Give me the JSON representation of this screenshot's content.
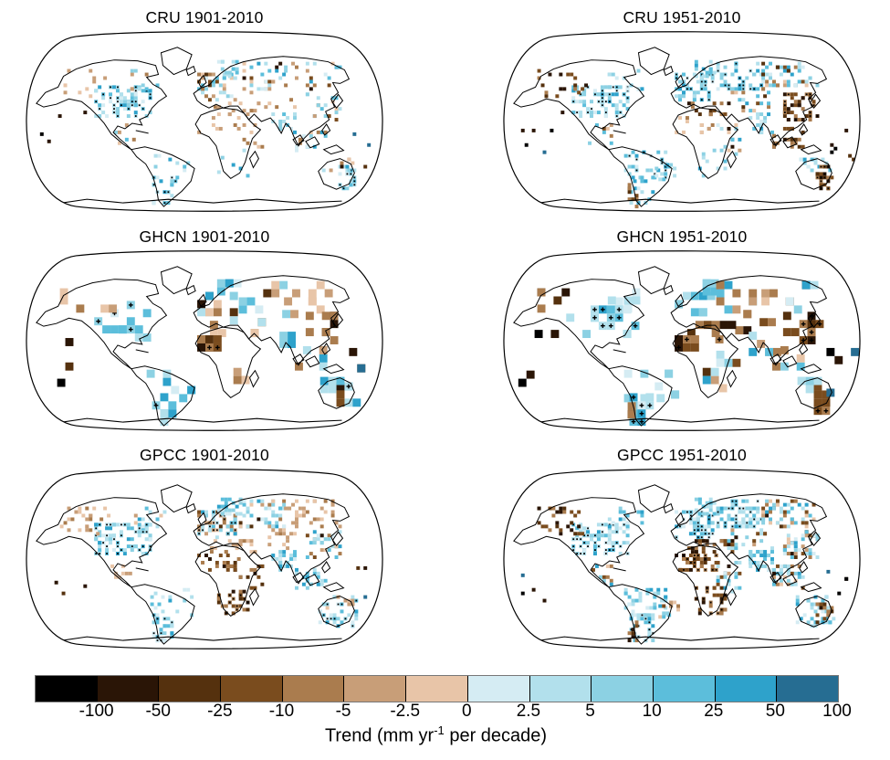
{
  "figure": {
    "kind": "precipitation-trend-map-grid",
    "rows": 3,
    "cols": 2
  },
  "panels": [
    {
      "title": "CRU 1901-2010",
      "cell": 4,
      "seed": 11,
      "regions": [
        [
          78,
          62,
          64,
          36,
          80,
          "b",
          1
        ],
        [
          40,
          44,
          56,
          30,
          12,
          "t",
          0
        ],
        [
          118,
          44,
          40,
          24,
          10,
          "m",
          0
        ],
        [
          192,
          48,
          44,
          30,
          45,
          "m",
          0
        ],
        [
          214,
          34,
          26,
          20,
          14,
          "b",
          0
        ],
        [
          238,
          36,
          50,
          32,
          28,
          "m",
          0
        ],
        [
          288,
          36,
          62,
          32,
          22,
          "m",
          0
        ],
        [
          250,
          68,
          50,
          22,
          10,
          "t",
          0
        ],
        [
          312,
          70,
          38,
          32,
          18,
          "m",
          0
        ],
        [
          274,
          92,
          28,
          24,
          16,
          "b",
          0
        ],
        [
          300,
          108,
          36,
          26,
          14,
          "m",
          0
        ],
        [
          206,
          80,
          52,
          16,
          12,
          "t",
          0
        ],
        [
          192,
          96,
          48,
          20,
          8,
          "t",
          0
        ],
        [
          238,
          104,
          26,
          34,
          8,
          "t",
          0
        ],
        [
          214,
          132,
          36,
          32,
          6,
          "b",
          0
        ],
        [
          136,
          134,
          50,
          32,
          10,
          "b",
          0
        ],
        [
          142,
          162,
          26,
          32,
          22,
          "b",
          1
        ],
        [
          348,
          150,
          18,
          26,
          22,
          "b",
          1
        ],
        [
          330,
          142,
          34,
          14,
          8,
          "m",
          0
        ],
        [
          10,
          90,
          60,
          60,
          4,
          "d",
          0
        ],
        [
          360,
          110,
          30,
          50,
          4,
          "d",
          0
        ],
        [
          96,
          104,
          28,
          26,
          6,
          "m",
          0
        ]
      ]
    },
    {
      "title": "CRU 1951-2010",
      "cell": 4,
      "seed": 22,
      "regions": [
        [
          78,
          62,
          64,
          36,
          80,
          "b",
          1
        ],
        [
          40,
          44,
          56,
          30,
          18,
          "br",
          0
        ],
        [
          118,
          44,
          40,
          24,
          12,
          "b",
          0
        ],
        [
          192,
          48,
          44,
          30,
          50,
          "b",
          1
        ],
        [
          214,
          34,
          26,
          20,
          16,
          "b",
          0
        ],
        [
          238,
          36,
          50,
          32,
          45,
          "b",
          1
        ],
        [
          288,
          36,
          62,
          32,
          55,
          "m",
          0
        ],
        [
          250,
          68,
          50,
          22,
          18,
          "m",
          0
        ],
        [
          312,
          70,
          38,
          32,
          40,
          "br",
          1
        ],
        [
          274,
          92,
          28,
          24,
          18,
          "b",
          0
        ],
        [
          300,
          108,
          36,
          26,
          22,
          "br",
          0
        ],
        [
          206,
          80,
          52,
          16,
          16,
          "br",
          0
        ],
        [
          192,
          96,
          48,
          20,
          12,
          "t",
          0
        ],
        [
          238,
          104,
          26,
          34,
          14,
          "m",
          0
        ],
        [
          214,
          132,
          36,
          32,
          10,
          "b",
          0
        ],
        [
          136,
          134,
          50,
          32,
          35,
          "b",
          1
        ],
        [
          170,
          148,
          26,
          20,
          10,
          "b",
          0
        ],
        [
          142,
          162,
          26,
          32,
          16,
          "b",
          0
        ],
        [
          140,
          170,
          12,
          26,
          10,
          "br",
          0
        ],
        [
          330,
          142,
          34,
          14,
          16,
          "b",
          0
        ],
        [
          348,
          150,
          18,
          26,
          20,
          "br",
          1
        ],
        [
          10,
          90,
          60,
          60,
          6,
          "d",
          0
        ],
        [
          360,
          110,
          30,
          50,
          6,
          "d",
          0
        ],
        [
          96,
          104,
          28,
          26,
          8,
          "m",
          0
        ]
      ]
    },
    {
      "title": "GHCN 1901-2010",
      "cell": 9,
      "seed": 33,
      "regions": [
        [
          78,
          58,
          66,
          40,
          16,
          "b",
          1
        ],
        [
          40,
          44,
          56,
          26,
          5,
          "t",
          0
        ],
        [
          192,
          48,
          44,
          30,
          12,
          "m",
          0
        ],
        [
          214,
          34,
          26,
          20,
          5,
          "b",
          0
        ],
        [
          238,
          36,
          50,
          32,
          8,
          "m",
          0
        ],
        [
          288,
          36,
          62,
          32,
          8,
          "t",
          0
        ],
        [
          250,
          68,
          50,
          22,
          5,
          "m",
          0
        ],
        [
          312,
          70,
          38,
          32,
          10,
          "br",
          0
        ],
        [
          274,
          92,
          28,
          24,
          5,
          "b",
          0
        ],
        [
          300,
          108,
          36,
          26,
          5,
          "m",
          0
        ],
        [
          206,
          80,
          52,
          16,
          6,
          "t",
          0
        ],
        [
          192,
          96,
          48,
          20,
          8,
          "br",
          1
        ],
        [
          214,
          132,
          36,
          32,
          4,
          "t",
          0
        ],
        [
          136,
          134,
          50,
          32,
          7,
          "b",
          0
        ],
        [
          142,
          160,
          26,
          34,
          9,
          "b",
          1
        ],
        [
          346,
          148,
          20,
          28,
          8,
          "m",
          1
        ],
        [
          328,
          142,
          30,
          14,
          5,
          "b",
          0
        ],
        [
          10,
          90,
          60,
          60,
          3,
          "d",
          0
        ],
        [
          360,
          110,
          30,
          50,
          3,
          "d",
          0
        ]
      ]
    },
    {
      "title": "GHCN 1951-2010",
      "cell": 9,
      "seed": 44,
      "regions": [
        [
          72,
          54,
          74,
          42,
          18,
          "b",
          1
        ],
        [
          40,
          44,
          40,
          26,
          5,
          "br",
          0
        ],
        [
          118,
          44,
          40,
          22,
          6,
          "b",
          0
        ],
        [
          192,
          48,
          44,
          30,
          10,
          "b",
          0
        ],
        [
          214,
          34,
          26,
          20,
          6,
          "b",
          0
        ],
        [
          238,
          36,
          50,
          32,
          12,
          "m",
          0
        ],
        [
          288,
          36,
          62,
          32,
          10,
          "m",
          0
        ],
        [
          250,
          68,
          50,
          22,
          6,
          "br",
          0
        ],
        [
          312,
          70,
          38,
          32,
          12,
          "br",
          1
        ],
        [
          274,
          92,
          28,
          24,
          7,
          "m",
          0
        ],
        [
          300,
          108,
          36,
          26,
          6,
          "m",
          0
        ],
        [
          206,
          80,
          52,
          16,
          7,
          "br",
          0
        ],
        [
          192,
          96,
          48,
          20,
          10,
          "br",
          1
        ],
        [
          238,
          104,
          26,
          34,
          4,
          "m",
          0
        ],
        [
          214,
          132,
          36,
          32,
          5,
          "m",
          0
        ],
        [
          136,
          134,
          50,
          32,
          8,
          "b",
          0
        ],
        [
          170,
          148,
          26,
          20,
          4,
          "b",
          0
        ],
        [
          142,
          160,
          26,
          34,
          10,
          "b",
          1
        ],
        [
          140,
          170,
          12,
          26,
          4,
          "br",
          0
        ],
        [
          346,
          148,
          20,
          28,
          8,
          "br",
          1
        ],
        [
          328,
          142,
          30,
          14,
          5,
          "b",
          0
        ],
        [
          10,
          90,
          60,
          60,
          4,
          "d",
          0
        ],
        [
          360,
          110,
          30,
          50,
          4,
          "d",
          0
        ]
      ]
    },
    {
      "title": "GPCC 1901-2010",
      "cell": 4,
      "seed": 55,
      "regions": [
        [
          78,
          62,
          64,
          36,
          100,
          "b",
          1
        ],
        [
          40,
          44,
          56,
          30,
          25,
          "t",
          0
        ],
        [
          118,
          44,
          40,
          24,
          12,
          "m",
          0
        ],
        [
          192,
          48,
          44,
          30,
          60,
          "m",
          1
        ],
        [
          214,
          34,
          26,
          20,
          22,
          "b",
          0
        ],
        [
          238,
          36,
          50,
          32,
          50,
          "m",
          0
        ],
        [
          288,
          36,
          62,
          32,
          35,
          "t",
          0
        ],
        [
          250,
          68,
          50,
          22,
          15,
          "t",
          0
        ],
        [
          312,
          70,
          38,
          32,
          30,
          "m",
          0
        ],
        [
          274,
          92,
          28,
          24,
          25,
          "b",
          0
        ],
        [
          300,
          108,
          36,
          26,
          20,
          "b",
          0
        ],
        [
          206,
          80,
          52,
          16,
          20,
          "t",
          0
        ],
        [
          192,
          96,
          48,
          20,
          22,
          "br",
          0
        ],
        [
          238,
          104,
          26,
          34,
          15,
          "br",
          0
        ],
        [
          214,
          132,
          36,
          32,
          25,
          "br",
          1
        ],
        [
          136,
          134,
          50,
          32,
          16,
          "b",
          0
        ],
        [
          142,
          162,
          26,
          32,
          30,
          "b",
          1
        ],
        [
          326,
          142,
          42,
          34,
          35,
          "b",
          1
        ],
        [
          330,
          142,
          34,
          14,
          8,
          "t",
          0
        ],
        [
          10,
          90,
          60,
          60,
          3,
          "d",
          0
        ],
        [
          360,
          110,
          30,
          50,
          3,
          "d",
          0
        ],
        [
          96,
          104,
          28,
          26,
          8,
          "t",
          0
        ]
      ]
    },
    {
      "title": "GPCC 1951-2010",
      "cell": 4,
      "seed": 66,
      "regions": [
        [
          78,
          62,
          64,
          36,
          100,
          "b",
          1
        ],
        [
          40,
          44,
          56,
          30,
          28,
          "br",
          0
        ],
        [
          118,
          44,
          40,
          24,
          15,
          "b",
          0
        ],
        [
          192,
          48,
          44,
          30,
          55,
          "b",
          1
        ],
        [
          214,
          34,
          26,
          20,
          20,
          "b",
          0
        ],
        [
          238,
          36,
          50,
          32,
          70,
          "b",
          1
        ],
        [
          288,
          36,
          62,
          32,
          60,
          "m",
          0
        ],
        [
          250,
          68,
          50,
          22,
          25,
          "m",
          0
        ],
        [
          312,
          70,
          38,
          32,
          50,
          "m",
          0
        ],
        [
          274,
          92,
          28,
          24,
          40,
          "b",
          0
        ],
        [
          300,
          108,
          36,
          26,
          35,
          "m",
          0
        ],
        [
          206,
          80,
          52,
          16,
          30,
          "br",
          0
        ],
        [
          192,
          96,
          48,
          20,
          40,
          "br",
          1
        ],
        [
          238,
          104,
          26,
          34,
          25,
          "m",
          0
        ],
        [
          214,
          132,
          36,
          32,
          30,
          "br",
          1
        ],
        [
          136,
          134,
          50,
          32,
          45,
          "b",
          0
        ],
        [
          170,
          148,
          26,
          20,
          12,
          "m",
          0
        ],
        [
          142,
          162,
          26,
          32,
          35,
          "b",
          1
        ],
        [
          140,
          170,
          12,
          26,
          8,
          "br",
          0
        ],
        [
          326,
          142,
          42,
          34,
          35,
          "b",
          0
        ],
        [
          348,
          150,
          18,
          26,
          15,
          "br",
          0
        ],
        [
          10,
          90,
          60,
          60,
          4,
          "d",
          0
        ],
        [
          360,
          110,
          30,
          50,
          4,
          "d",
          0
        ],
        [
          96,
          104,
          28,
          26,
          10,
          "m",
          0
        ]
      ]
    }
  ],
  "colorbar": {
    "segments": [
      "#000000",
      "#2a1506",
      "#55310e",
      "#7a4c1e",
      "#aa7c4e",
      "#c89e78",
      "#e8c5a8",
      "#d5ecf3",
      "#b2e0ec",
      "#8cd1e3",
      "#5cbedb",
      "#2ea2cb",
      "#266d92"
    ],
    "labels": [
      "-100",
      "-50",
      "-25",
      "-10",
      "-5",
      "-2.5",
      "0",
      "2.5",
      "5",
      "10",
      "25",
      "50",
      "100"
    ],
    "caption": {
      "pre": "Trend (mm yr",
      "sup": "-1",
      "post": " per decade)"
    }
  },
  "map_style": {
    "land_fill": "#ffffff",
    "coast_stroke": "#000000",
    "stipple_color": "#000000"
  }
}
